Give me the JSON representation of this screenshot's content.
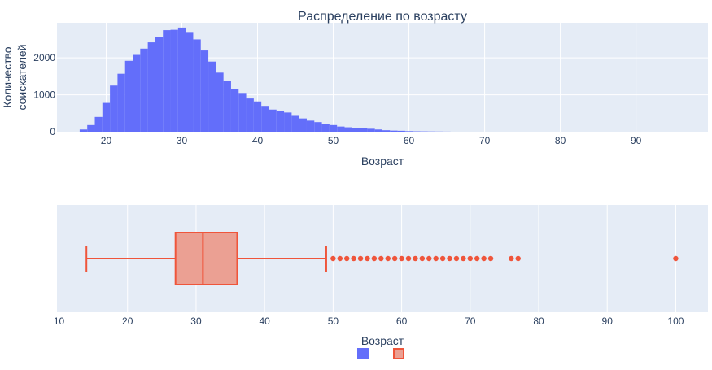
{
  "chart_data": [
    {
      "type": "histogram",
      "title": "Распределение по возрасту",
      "xlabel": "Возраст",
      "ylabel": [
        "Количество",
        "соискателей"
      ],
      "xlim": [
        13.5,
        99.5
      ],
      "ylim": [
        0,
        2950
      ],
      "xticks": [
        20,
        30,
        40,
        50,
        60,
        70,
        80,
        90
      ],
      "yticks": [
        0,
        1000,
        2000
      ],
      "bin_width": 1,
      "colors": {
        "bar": "#636efa",
        "plot_bg": "#e5ecf6",
        "grid": "#ffffff"
      },
      "bins": [
        {
          "x": 17,
          "y": 60
        },
        {
          "x": 18,
          "y": 180
        },
        {
          "x": 19,
          "y": 400
        },
        {
          "x": 20,
          "y": 780
        },
        {
          "x": 21,
          "y": 1250
        },
        {
          "x": 22,
          "y": 1570
        },
        {
          "x": 23,
          "y": 1920
        },
        {
          "x": 24,
          "y": 2080
        },
        {
          "x": 25,
          "y": 2250
        },
        {
          "x": 26,
          "y": 2420
        },
        {
          "x": 27,
          "y": 2560
        },
        {
          "x": 28,
          "y": 2750
        },
        {
          "x": 29,
          "y": 2760
        },
        {
          "x": 30,
          "y": 2820
        },
        {
          "x": 31,
          "y": 2700
        },
        {
          "x": 32,
          "y": 2500
        },
        {
          "x": 33,
          "y": 2200
        },
        {
          "x": 34,
          "y": 1900
        },
        {
          "x": 35,
          "y": 1600
        },
        {
          "x": 36,
          "y": 1370
        },
        {
          "x": 37,
          "y": 1150
        },
        {
          "x": 38,
          "y": 1050
        },
        {
          "x": 39,
          "y": 900
        },
        {
          "x": 40,
          "y": 820
        },
        {
          "x": 41,
          "y": 700
        },
        {
          "x": 42,
          "y": 600
        },
        {
          "x": 43,
          "y": 560
        },
        {
          "x": 44,
          "y": 520
        },
        {
          "x": 45,
          "y": 430
        },
        {
          "x": 46,
          "y": 360
        },
        {
          "x": 47,
          "y": 300
        },
        {
          "x": 48,
          "y": 260
        },
        {
          "x": 49,
          "y": 200
        },
        {
          "x": 50,
          "y": 180
        },
        {
          "x": 51,
          "y": 140
        },
        {
          "x": 52,
          "y": 120
        },
        {
          "x": 53,
          "y": 100
        },
        {
          "x": 54,
          "y": 90
        },
        {
          "x": 55,
          "y": 80
        },
        {
          "x": 56,
          "y": 60
        },
        {
          "x": 57,
          "y": 40
        },
        {
          "x": 58,
          "y": 30
        },
        {
          "x": 59,
          "y": 25
        },
        {
          "x": 60,
          "y": 15
        },
        {
          "x": 61,
          "y": 10
        },
        {
          "x": 62,
          "y": 8
        },
        {
          "x": 63,
          "y": 6
        },
        {
          "x": 64,
          "y": 4
        },
        {
          "x": 65,
          "y": 2
        }
      ]
    },
    {
      "type": "box",
      "orientation": "horizontal",
      "xlabel": "Возраст",
      "xlim": [
        9.7,
        104.7
      ],
      "xticks": [
        10,
        20,
        30,
        40,
        50,
        60,
        70,
        80,
        90,
        100
      ],
      "colors": {
        "line": "#ef553b",
        "fill": "#eba093",
        "plot_bg": "#e5ecf6",
        "grid": "#ffffff"
      },
      "stats": {
        "min": 14,
        "q1": 27,
        "median": 31,
        "q3": 36,
        "max": 49
      },
      "outliers": [
        50,
        51,
        52,
        53,
        54,
        55,
        56,
        57,
        58,
        59,
        60,
        61,
        62,
        63,
        64,
        65,
        66,
        67,
        68,
        69,
        70,
        71,
        72,
        73,
        76,
        77,
        100
      ]
    }
  ],
  "legend": {
    "placement": "bottom-center",
    "items": [
      {
        "color": "#636efa",
        "border": "#636efa"
      },
      {
        "color": "#eba093",
        "border": "#ef553b"
      }
    ]
  }
}
